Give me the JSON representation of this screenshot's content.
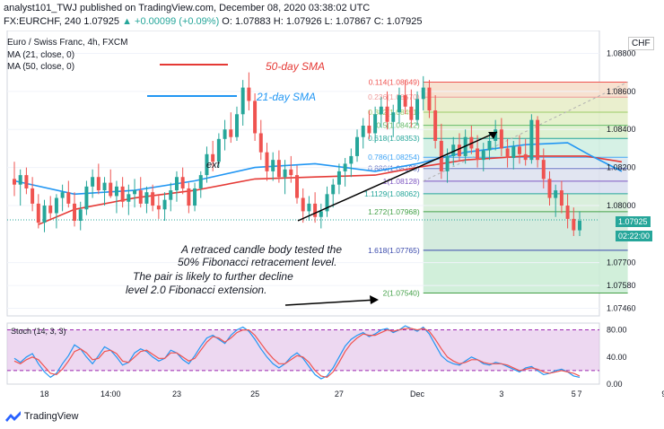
{
  "header": {
    "publish_line": "analyst101_TWJ published on TradingView.com, December 08, 2020 03:38:02 UTC",
    "symbol_line_prefix": "FX:EURCHF, 240",
    "last_price": "1.07925",
    "change": "+0.00099 (+0.09%)",
    "ohlc": "O: 1.07883 H: 1.07926 L: 1.07867 C: 1.07925"
  },
  "legend": {
    "instrument": "Euro / Swiss Franc, 4h, FXCM",
    "ma21": "MA (21, close, 0)",
    "ma50": "MA (50, close, 0)",
    "currency": "CHF"
  },
  "footer": {
    "brand": "TradingView"
  },
  "badges": {
    "price": "1.07925",
    "countdown": "02:22:00"
  },
  "annotations": {
    "sma50": "50-day SMA",
    "sma21": "21-day SMA",
    "retrace_line1": "A retraced candle body tested the",
    "retrace_line2": "50% Fibonacci retracement level.",
    "decline_line1": "The pair is likely to further decline",
    "decline_line2": "level 2.0 Fibonacci extension.",
    "ext": "ext"
  },
  "colors": {
    "up": "#26a69a",
    "down": "#ef5350",
    "ma21": "#2196f3",
    "ma50": "#e53935",
    "stoch_k": "#2196f3",
    "stoch_d": "#ef5350",
    "stoch_bg": "#e1bee7"
  },
  "chart_data": [
    {
      "type": "candlestick",
      "title": "Euro / Swiss Franc, 4h, FXCM",
      "ylim": [
        1.0742,
        1.0892
      ],
      "yticks": [
        "1.08800",
        "1.08600",
        "1.08400",
        "1.08200",
        "1.08000",
        "1.07700",
        "1.07580",
        "1.07460"
      ],
      "xticks": [
        {
          "label": "18",
          "i": 5
        },
        {
          "label": "14:00",
          "i": 16
        },
        {
          "label": "23",
          "i": 27
        },
        {
          "label": "25",
          "i": 40
        },
        {
          "label": "27",
          "i": 54
        },
        {
          "label": "Dec",
          "i": 67
        },
        {
          "label": "3",
          "i": 81
        },
        {
          "label": "5",
          "i": 93
        },
        {
          "label": "7",
          "i": 94
        },
        {
          "label": "9",
          "i": 108
        }
      ],
      "ma21": [
        [
          0,
          1.0813
        ],
        [
          10,
          1.0806
        ],
        [
          20,
          1.0808
        ],
        [
          30,
          1.0813
        ],
        [
          40,
          1.082
        ],
        [
          50,
          1.0822
        ],
        [
          60,
          1.0818
        ],
        [
          67,
          1.0822
        ],
        [
          75,
          1.0828
        ],
        [
          85,
          1.0832
        ],
        [
          92,
          1.0833
        ],
        [
          96,
          1.0826
        ],
        [
          101,
          1.0818
        ]
      ],
      "ma50": [
        [
          4,
          1.079
        ],
        [
          10,
          1.0798
        ],
        [
          20,
          1.0804
        ],
        [
          30,
          1.0808
        ],
        [
          40,
          1.0814
        ],
        [
          50,
          1.0815
        ],
        [
          60,
          1.0816
        ],
        [
          67,
          1.082
        ],
        [
          75,
          1.0824
        ],
        [
          85,
          1.0826
        ],
        [
          95,
          1.0826
        ],
        [
          101,
          1.0823
        ]
      ],
      "fibonacci": [
        {
          "label": "0.114(1.08649)",
          "value": 1.08649
        },
        {
          "label": "0.236(1.08570)",
          "value": 1.0857
        },
        {
          "label": "0.382(1.08491)",
          "value": 1.08491
        },
        {
          "label": "0.5(1.08422)",
          "value": 1.08422
        },
        {
          "label": "0.618(1.08353)",
          "value": 1.08353
        },
        {
          "label": "0.786(1.08254)",
          "value": 1.08254
        },
        {
          "label": "0.886(1.08195)",
          "value": 1.08195
        },
        {
          "label": "1(1.08128)",
          "value": 1.08128
        },
        {
          "label": "1.1129(1.08062)",
          "value": 1.08062
        },
        {
          "label": "1.272(1.07968)",
          "value": 1.07968
        },
        {
          "label": "1.618(1.07765)",
          "value": 1.07765
        },
        {
          "label": "2(1.07540)",
          "value": 1.0754
        }
      ],
      "candles": [
        [
          1.0814,
          1.0823,
          1.0805,
          1.0811
        ],
        [
          1.0811,
          1.0819,
          1.08,
          1.0816
        ],
        [
          1.0816,
          1.082,
          1.0806,
          1.0809
        ],
        [
          1.0809,
          1.0815,
          1.0797,
          1.0801
        ],
        [
          1.0801,
          1.0806,
          1.0788,
          1.0791
        ],
        [
          1.0791,
          1.0803,
          1.0786,
          1.08
        ],
        [
          1.08,
          1.0805,
          1.0793,
          1.0796
        ],
        [
          1.0796,
          1.0806,
          1.0788,
          1.0804
        ],
        [
          1.0804,
          1.0811,
          1.0797,
          1.0807
        ],
        [
          1.0807,
          1.0813,
          1.0799,
          1.0801
        ],
        [
          1.0801,
          1.0807,
          1.0789,
          1.0792
        ],
        [
          1.0792,
          1.0802,
          1.0787,
          1.0798
        ],
        [
          1.0798,
          1.0813,
          1.0795,
          1.081
        ],
        [
          1.081,
          1.0819,
          1.0804,
          1.0815
        ],
        [
          1.0815,
          1.0822,
          1.0806,
          1.0808
        ],
        [
          1.0808,
          1.0815,
          1.08,
          1.0812
        ],
        [
          1.0812,
          1.0819,
          1.0804,
          1.0805
        ],
        [
          1.0805,
          1.0813,
          1.0796,
          1.081
        ],
        [
          1.081,
          1.0815,
          1.0799,
          1.0802
        ],
        [
          1.0802,
          1.0811,
          1.0795,
          1.0806
        ],
        [
          1.0806,
          1.0814,
          1.0799,
          1.0808
        ],
        [
          1.0808,
          1.0815,
          1.0799,
          1.0801
        ],
        [
          1.0801,
          1.081,
          1.0796,
          1.0807
        ],
        [
          1.0807,
          1.0811,
          1.0797,
          1.08
        ],
        [
          1.08,
          1.0806,
          1.0793,
          1.0798
        ],
        [
          1.0798,
          1.0807,
          1.0792,
          1.0803
        ],
        [
          1.0803,
          1.0812,
          1.0797,
          1.0808
        ],
        [
          1.0808,
          1.0818,
          1.0802,
          1.0815
        ],
        [
          1.0815,
          1.082,
          1.0806,
          1.0809
        ],
        [
          1.0809,
          1.0812,
          1.0796,
          1.08
        ],
        [
          1.08,
          1.0812,
          1.0797,
          1.0809
        ],
        [
          1.0809,
          1.0818,
          1.0804,
          1.0816
        ],
        [
          1.0816,
          1.0831,
          1.0812,
          1.0827
        ],
        [
          1.0827,
          1.0834,
          1.0818,
          1.0823
        ],
        [
          1.0823,
          1.0838,
          1.082,
          1.0835
        ],
        [
          1.0835,
          1.0845,
          1.0829,
          1.084
        ],
        [
          1.084,
          1.0849,
          1.0833,
          1.0836
        ],
        [
          1.0836,
          1.0852,
          1.0834,
          1.0848
        ],
        [
          1.0848,
          1.0866,
          1.0842,
          1.0862
        ],
        [
          1.0862,
          1.087,
          1.085,
          1.0855
        ],
        [
          1.0855,
          1.0859,
          1.0834,
          1.0838
        ],
        [
          1.0838,
          1.0845,
          1.0824,
          1.0828
        ],
        [
          1.0828,
          1.0833,
          1.0813,
          1.0818
        ],
        [
          1.0818,
          1.0828,
          1.0813,
          1.0824
        ],
        [
          1.0824,
          1.0829,
          1.0812,
          1.0815
        ],
        [
          1.0815,
          1.0824,
          1.0806,
          1.0819
        ],
        [
          1.0819,
          1.0826,
          1.0812,
          1.0816
        ],
        [
          1.0816,
          1.0821,
          1.0801,
          1.0804
        ],
        [
          1.0804,
          1.0809,
          1.0791,
          1.0797
        ],
        [
          1.0797,
          1.0805,
          1.0792,
          1.0801
        ],
        [
          1.0801,
          1.0807,
          1.0791,
          1.0794
        ],
        [
          1.0794,
          1.0801,
          1.0788,
          1.0797
        ],
        [
          1.0797,
          1.081,
          1.0794,
          1.0806
        ],
        [
          1.0806,
          1.0814,
          1.0799,
          1.0811
        ],
        [
          1.0811,
          1.0822,
          1.0806,
          1.0818
        ],
        [
          1.0818,
          1.0825,
          1.081,
          1.0822
        ],
        [
          1.0822,
          1.083,
          1.0815,
          1.0826
        ],
        [
          1.0826,
          1.084,
          1.0823,
          1.0836
        ],
        [
          1.0836,
          1.0846,
          1.083,
          1.0842
        ],
        [
          1.0842,
          1.085,
          1.0835,
          1.0838
        ],
        [
          1.0838,
          1.0852,
          1.0833,
          1.0848
        ],
        [
          1.0848,
          1.0857,
          1.0841,
          1.0852
        ],
        [
          1.0852,
          1.086,
          1.084,
          1.0844
        ],
        [
          1.0844,
          1.0853,
          1.0836,
          1.0849
        ],
        [
          1.0849,
          1.0862,
          1.0843,
          1.0858
        ],
        [
          1.0858,
          1.0866,
          1.0848,
          1.0852
        ],
        [
          1.0852,
          1.0861,
          1.0841,
          1.0845
        ],
        [
          1.0845,
          1.086,
          1.0842,
          1.0856
        ],
        [
          1.0856,
          1.0868,
          1.085,
          1.0862
        ],
        [
          1.0862,
          1.0866,
          1.0846,
          1.085
        ],
        [
          1.085,
          1.0858,
          1.083,
          1.0834
        ],
        [
          1.0834,
          1.0843,
          1.0814,
          1.0818
        ],
        [
          1.0818,
          1.083,
          1.0812,
          1.0826
        ],
        [
          1.0826,
          1.0836,
          1.0821,
          1.0832
        ],
        [
          1.0832,
          1.0838,
          1.0823,
          1.0826
        ],
        [
          1.0826,
          1.084,
          1.0822,
          1.0836
        ],
        [
          1.0836,
          1.0842,
          1.0827,
          1.083
        ],
        [
          1.083,
          1.0837,
          1.082,
          1.0824
        ],
        [
          1.0824,
          1.0833,
          1.0818,
          1.0829
        ],
        [
          1.0829,
          1.0838,
          1.0824,
          1.0834
        ],
        [
          1.0834,
          1.0845,
          1.0829,
          1.084
        ],
        [
          1.084,
          1.0846,
          1.0826,
          1.083
        ],
        [
          1.083,
          1.0835,
          1.082,
          1.0825
        ],
        [
          1.0825,
          1.0834,
          1.0819,
          1.0831
        ],
        [
          1.0831,
          1.0837,
          1.0822,
          1.0827
        ],
        [
          1.0827,
          1.0835,
          1.0821,
          1.0824
        ],
        [
          1.0824,
          1.0848,
          1.0822,
          1.0845
        ],
        [
          1.0845,
          1.0847,
          1.082,
          1.0824
        ],
        [
          1.0824,
          1.083,
          1.0809,
          1.0814
        ],
        [
          1.0814,
          1.0818,
          1.08,
          1.0804
        ],
        [
          1.0804,
          1.0811,
          1.0794,
          1.0808
        ],
        [
          1.0808,
          1.0813,
          1.0796,
          1.08
        ],
        [
          1.08,
          1.0806,
          1.0788,
          1.0793
        ],
        [
          1.0793,
          1.0799,
          1.0784,
          1.0787
        ],
        [
          1.0787,
          1.0797,
          1.0784,
          1.0792
        ]
      ]
    },
    {
      "type": "line",
      "title": "Stoch (14, 3, 3)",
      "ylim": [
        0,
        90
      ],
      "yticks": [
        "80.00",
        "40.00",
        "0.00"
      ],
      "bands": [
        20,
        80
      ],
      "series": [
        {
          "values": [
            38,
            32,
            40,
            45,
            30,
            18,
            10,
            16,
            30,
            42,
            58,
            52,
            40,
            30,
            42,
            55,
            50,
            40,
            28,
            32,
            46,
            52,
            48,
            40,
            34,
            38,
            50,
            46,
            36,
            30,
            42,
            56,
            68,
            72,
            66,
            60,
            72,
            80,
            84,
            78,
            66,
            52,
            40,
            30,
            24,
            30,
            40,
            46,
            38,
            26,
            14,
            8,
            12,
            24,
            40,
            56,
            66,
            72,
            76,
            70,
            74,
            80,
            82,
            76,
            80,
            86,
            82,
            78,
            84,
            74,
            58,
            42,
            34,
            30,
            28,
            34,
            40,
            36,
            30,
            28,
            32,
            30,
            26,
            22,
            18,
            24,
            26,
            20,
            14,
            16,
            20,
            22,
            18,
            12,
            10
          ]
        },
        {
          "values": [
            34,
            30,
            36,
            40,
            36,
            26,
            16,
            14,
            22,
            34,
            48,
            52,
            46,
            36,
            38,
            48,
            50,
            45,
            34,
            32,
            40,
            48,
            50,
            44,
            38,
            38,
            46,
            46,
            40,
            34,
            38,
            50,
            62,
            70,
            68,
            62,
            68,
            76,
            80,
            80,
            72,
            60,
            48,
            38,
            30,
            30,
            36,
            42,
            40,
            32,
            20,
            12,
            10,
            18,
            32,
            48,
            60,
            68,
            74,
            72,
            72,
            76,
            80,
            78,
            80,
            82,
            82,
            80,
            82,
            78,
            66,
            52,
            40,
            34,
            30,
            32,
            36,
            36,
            32,
            30,
            30,
            30,
            28,
            24,
            20,
            22,
            24,
            22,
            18,
            16,
            18,
            20,
            18,
            16,
            12
          ]
        }
      ]
    }
  ]
}
